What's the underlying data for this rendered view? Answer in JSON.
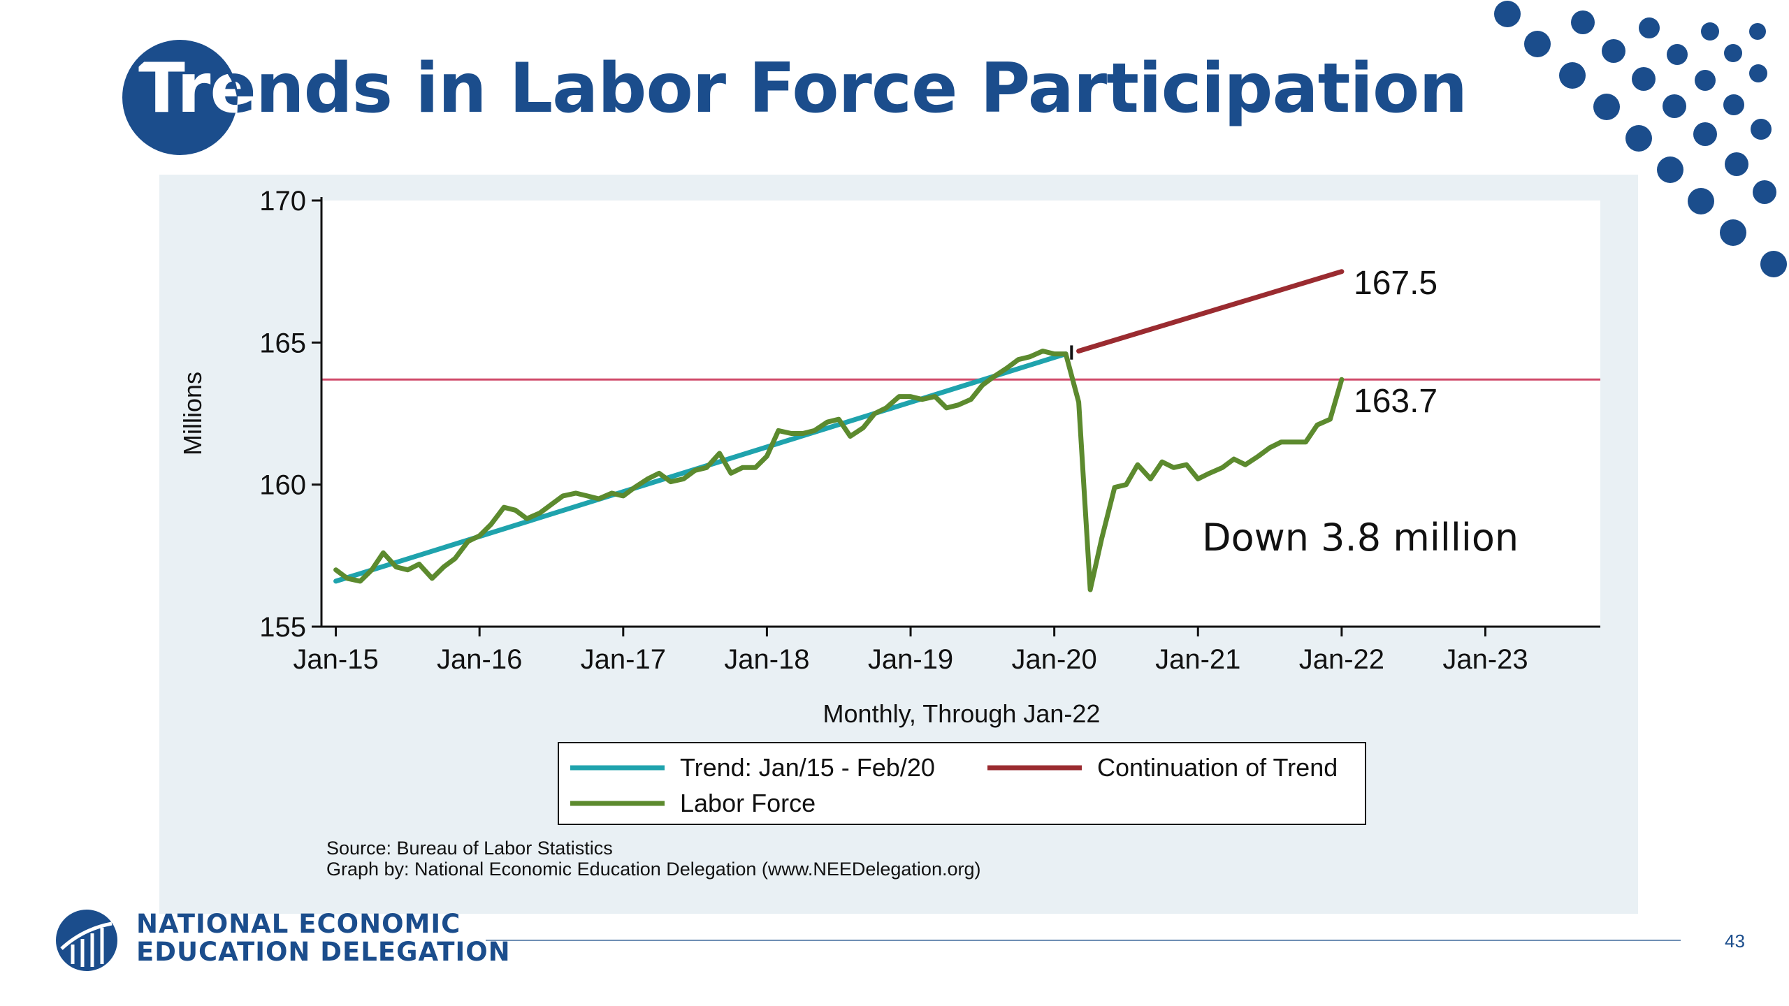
{
  "slide": {
    "title": "Trends in Labor Force Participation",
    "page_number": "43",
    "org_line1": "NATIONAL ECONOMIC",
    "org_line2": "EDUCATION DELEGATION"
  },
  "colors": {
    "brand_blue": "#1b4d8c",
    "trend": "#1fa3ad",
    "continuation": "#9a2b30",
    "labor_force": "#5c8a2e",
    "reference_line": "#d04a6a"
  },
  "chart_data": {
    "type": "line",
    "title": "",
    "xlabel": "Monthly, Through Jan-22",
    "ylabel": "Millions",
    "ylim": [
      155,
      170
    ],
    "yticks": [
      155,
      160,
      165,
      170
    ],
    "xlim": [
      2014.9,
      2023.8
    ],
    "xticks": [
      {
        "x": 2015,
        "label": "Jan-15"
      },
      {
        "x": 2016,
        "label": "Jan-16"
      },
      {
        "x": 2017,
        "label": "Jan-17"
      },
      {
        "x": 2018,
        "label": "Jan-18"
      },
      {
        "x": 2019,
        "label": "Jan-19"
      },
      {
        "x": 2020,
        "label": "Jan-20"
      },
      {
        "x": 2021,
        "label": "Jan-21"
      },
      {
        "x": 2022,
        "label": "Jan-22"
      },
      {
        "x": 2023,
        "label": "Jan-23"
      }
    ],
    "grid": false,
    "legend_position": "bottom",
    "series": [
      {
        "name": "Trend: Jan/15 - Feb/20",
        "key": "trend",
        "x": [
          2015.0,
          2020.08
        ],
        "y": [
          156.6,
          164.6
        ]
      },
      {
        "name": "Continuation of Trend",
        "key": "continuation",
        "x": [
          2020.17,
          2022.0
        ],
        "y": [
          164.7,
          167.5
        ]
      },
      {
        "name": "Labor Force",
        "key": "labor_force",
        "x": [
          2015.0,
          2015.08,
          2015.17,
          2015.25,
          2015.33,
          2015.42,
          2015.5,
          2015.58,
          2015.67,
          2015.75,
          2015.83,
          2015.92,
          2016.0,
          2016.08,
          2016.17,
          2016.25,
          2016.33,
          2016.42,
          2016.5,
          2016.58,
          2016.67,
          2016.75,
          2016.83,
          2016.92,
          2017.0,
          2017.08,
          2017.17,
          2017.25,
          2017.33,
          2017.42,
          2017.5,
          2017.58,
          2017.67,
          2017.75,
          2017.83,
          2017.92,
          2018.0,
          2018.08,
          2018.17,
          2018.25,
          2018.33,
          2018.42,
          2018.5,
          2018.58,
          2018.67,
          2018.75,
          2018.83,
          2018.92,
          2019.0,
          2019.08,
          2019.17,
          2019.25,
          2019.33,
          2019.42,
          2019.5,
          2019.58,
          2019.67,
          2019.75,
          2019.83,
          2019.92,
          2020.0,
          2020.08,
          2020.17,
          2020.25,
          2020.33,
          2020.42,
          2020.5,
          2020.58,
          2020.67,
          2020.75,
          2020.83,
          2020.92,
          2021.0,
          2021.08,
          2021.17,
          2021.25,
          2021.33,
          2021.42,
          2021.5,
          2021.58,
          2021.67,
          2021.75,
          2021.83,
          2021.92,
          2022.0
        ],
        "y": [
          157.0,
          156.7,
          156.6,
          157.0,
          157.6,
          157.1,
          157.0,
          157.2,
          156.7,
          157.1,
          157.4,
          158.0,
          158.2,
          158.6,
          159.2,
          159.1,
          158.8,
          159.0,
          159.3,
          159.6,
          159.7,
          159.6,
          159.5,
          159.7,
          159.6,
          159.9,
          160.2,
          160.4,
          160.1,
          160.2,
          160.5,
          160.6,
          161.1,
          160.4,
          160.6,
          160.6,
          161.0,
          161.9,
          161.8,
          161.8,
          161.9,
          162.2,
          162.3,
          161.7,
          162.0,
          162.5,
          162.7,
          163.1,
          163.1,
          163.0,
          163.1,
          162.7,
          162.8,
          163.0,
          163.5,
          163.8,
          164.1,
          164.4,
          164.5,
          164.7,
          164.6,
          164.6,
          162.9,
          156.3,
          158.1,
          159.9,
          160.0,
          160.7,
          160.2,
          160.8,
          160.6,
          160.7,
          160.2,
          160.4,
          160.6,
          160.9,
          160.7,
          161.0,
          161.3,
          161.5,
          161.5,
          161.5,
          162.1,
          162.3,
          163.7
        ]
      }
    ],
    "reference_line": {
      "y": 163.7
    },
    "annotations": {
      "continuation_end": "167.5",
      "labor_force_end": "163.7",
      "drop": "Down 3.8 million"
    },
    "source_line1": "Source: Bureau of Labor Statistics",
    "source_line2": "Graph by: National Economic Education Delegation (www.NEEDelegation.org)"
  }
}
